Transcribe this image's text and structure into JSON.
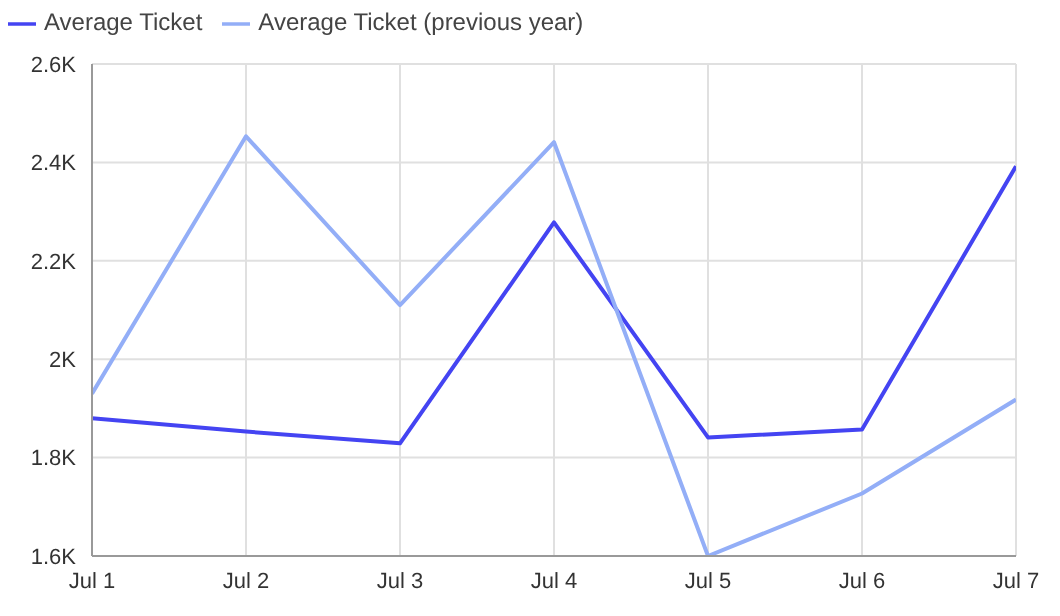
{
  "chart_data": {
    "type": "line",
    "categories": [
      "Jul 1",
      "Jul 2",
      "Jul 3",
      "Jul 4",
      "Jul 5",
      "Jul 6",
      "Jul 7"
    ],
    "series": [
      {
        "name": "Average Ticket",
        "color": "#4444f2",
        "values": [
          1880,
          1853,
          1829,
          2278,
          1841,
          1857,
          2392
        ]
      },
      {
        "name": "Average Ticket (previous year)",
        "color": "#93aef7",
        "values": [
          1930,
          2453,
          2110,
          2441,
          1600,
          1727,
          1918
        ]
      }
    ],
    "ylim": [
      1600,
      2600
    ],
    "yticks": [
      {
        "value": 1600,
        "label": "1.6K"
      },
      {
        "value": 1800,
        "label": "1.8K"
      },
      {
        "value": 2000,
        "label": "2K"
      },
      {
        "value": 2200,
        "label": "2.2K"
      },
      {
        "value": 2400,
        "label": "2.4K"
      },
      {
        "value": 2600,
        "label": "2.6K"
      }
    ],
    "grid": true,
    "legend": "top left",
    "marker": "none",
    "line_style": "solid"
  }
}
